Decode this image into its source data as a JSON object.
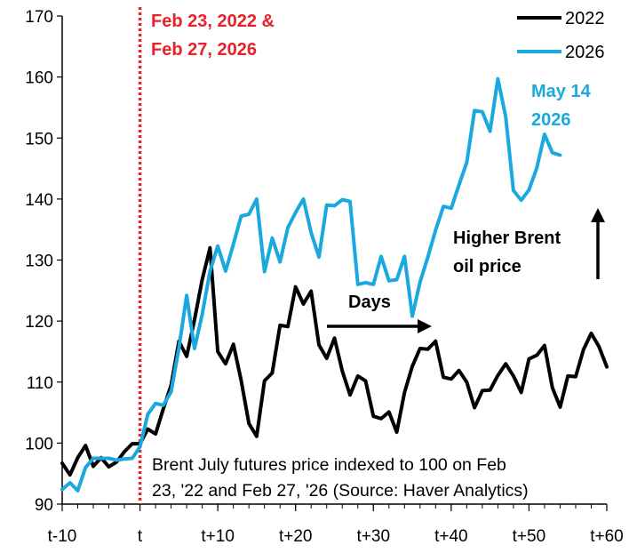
{
  "chart_data": {
    "type": "line",
    "x_tick_labels": [
      "t-10",
      "t",
      "t+10",
      "t+20",
      "t+30",
      "t+40",
      "t+50",
      "t+60"
    ],
    "x_range": [
      -10,
      60
    ],
    "x_tick_values": [
      -10,
      0,
      10,
      20,
      30,
      40,
      50,
      60
    ],
    "ylim": [
      90,
      170
    ],
    "y_ticks": [
      90,
      100,
      110,
      120,
      130,
      140,
      150,
      160,
      170
    ],
    "grid": false,
    "legend_position": "top-right",
    "series": [
      {
        "name": "2022",
        "color": "#000000",
        "x": [
          -10,
          -9,
          -8,
          -7,
          -6,
          -5,
          -4,
          -3,
          -2,
          -1,
          0,
          1,
          2,
          3,
          4,
          5,
          6,
          7,
          8,
          9,
          10,
          11,
          12,
          13,
          14,
          15,
          16,
          17,
          18,
          19,
          20,
          21,
          22,
          23,
          24,
          25,
          26,
          27,
          28,
          29,
          30,
          31,
          32,
          33,
          34,
          35,
          36,
          37,
          38,
          39,
          40,
          41,
          42,
          43,
          44,
          45,
          46,
          47,
          48,
          49,
          50,
          51,
          52,
          53,
          54,
          55,
          56,
          57,
          58,
          59,
          60
        ],
        "values": [
          96.7,
          94.8,
          97.6,
          99.6,
          96.2,
          97.6,
          96.1,
          96.9,
          98.6,
          99.9,
          99.9,
          102.3,
          101.5,
          105.6,
          109.5,
          116.7,
          114.2,
          120.2,
          126.8,
          132.0,
          115.0,
          113.0,
          116.2,
          110.3,
          103.2,
          101.1,
          110.2,
          111.5,
          119.3,
          119.1,
          125.6,
          122.8,
          124.9,
          116.1,
          113.9,
          117.2,
          111.8,
          107.9,
          111.0,
          110.2,
          104.4,
          104.0,
          105.1,
          101.8,
          108.3,
          112.6,
          115.5,
          115.4,
          116.7,
          110.8,
          110.5,
          111.9,
          110.0,
          105.8,
          108.6,
          108.7,
          111.1,
          113.0,
          111.0,
          108.3,
          113.8,
          114.4,
          116.0,
          109.1,
          105.9,
          111.0,
          110.9,
          115.3,
          118.0,
          115.8,
          112.5
        ]
      },
      {
        "name": "2026",
        "color": "#1AA9DE",
        "x": [
          -10,
          -9,
          -8,
          -7,
          -6,
          -5,
          -4,
          -3,
          -2,
          -1,
          0,
          1,
          2,
          3,
          4,
          5,
          6,
          7,
          8,
          9,
          10,
          11,
          12,
          13,
          14,
          15,
          16,
          17,
          18,
          19,
          20,
          21,
          22,
          23,
          24,
          25,
          26,
          27,
          28,
          29,
          30,
          31,
          32,
          33,
          34,
          35,
          36,
          37,
          38,
          39,
          40,
          41,
          42,
          43,
          44,
          45,
          46,
          47,
          48,
          49,
          50,
          51,
          52,
          53,
          54
        ],
        "values": [
          92.4,
          93.5,
          92.2,
          96.0,
          97.5,
          97.5,
          97.5,
          97.2,
          97.4,
          97.5,
          99.4,
          104.7,
          106.5,
          106.2,
          108.4,
          115.6,
          124.2,
          115.5,
          121.1,
          128.2,
          132.3,
          128.2,
          132.6,
          137.2,
          137.5,
          140.0,
          128.1,
          133.6,
          129.7,
          135.3,
          137.8,
          140.0,
          134.5,
          130.5,
          139.0,
          138.9,
          139.9,
          139.6,
          126.0,
          126.3,
          126.0,
          130.6,
          126.6,
          126.8,
          130.6,
          120.8,
          126.4,
          130.5,
          134.9,
          138.8,
          138.5,
          142.3,
          146.0,
          154.5,
          154.3,
          151.1,
          159.7,
          153.5,
          141.4,
          139.8,
          141.5,
          145.1,
          150.6,
          147.6,
          147.2
        ]
      }
    ],
    "annotations": {
      "event_date": "Feb 23, 2022 &\nFeb 27, 2026",
      "latest_date": "May 14\n2026",
      "higher_price": "Higher Brent\noil price",
      "days": "Days",
      "source_note": "Brent July futures price indexed to 100 on Feb\n23, '22 and Feb 27, '26 (Source: Haver Analytics)"
    },
    "colors": {
      "event_line": "#E8222A",
      "series_2026": "#1AA9DE",
      "series_2022": "#000000"
    }
  }
}
